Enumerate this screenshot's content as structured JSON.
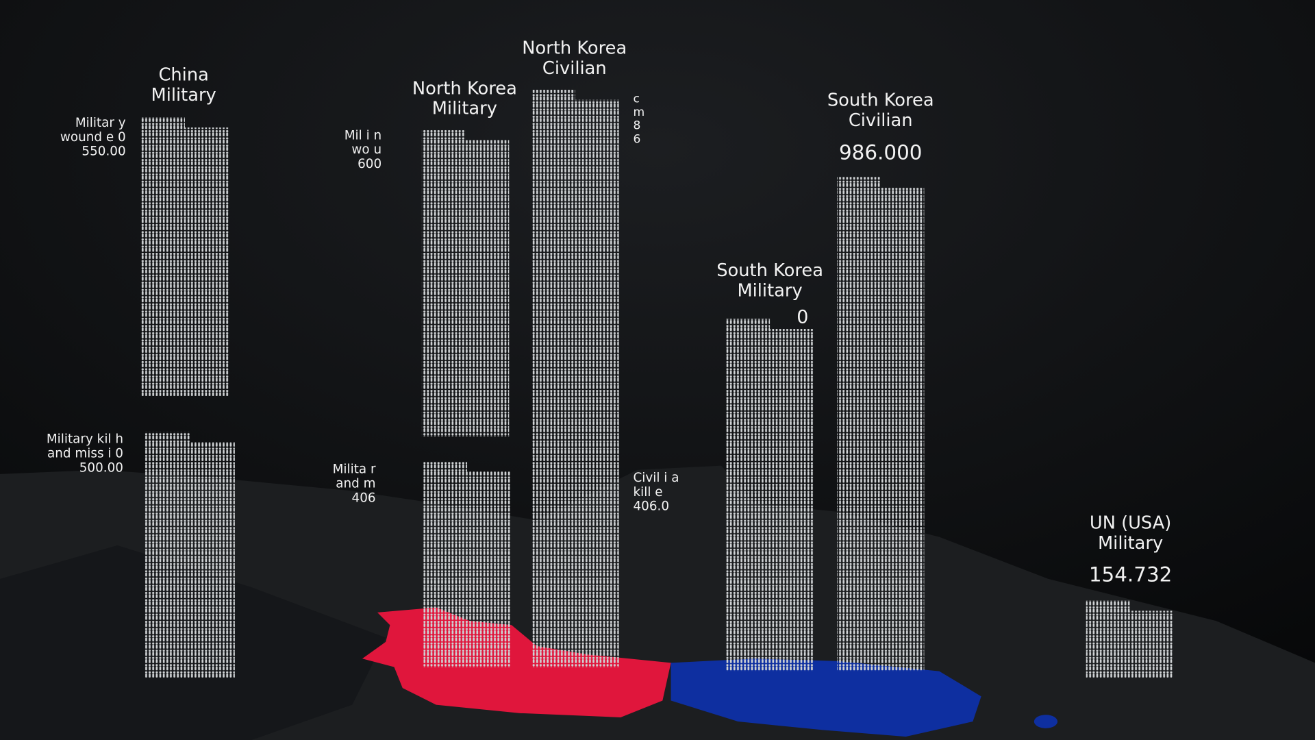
{
  "columns": [
    {
      "title": [
        "China",
        "Military"
      ],
      "labels": [
        [
          "Militar y",
          "wound e 0",
          "550.00"
        ],
        [
          "Military kil h",
          "and miss i 0",
          "500.00"
        ]
      ]
    },
    {
      "title": [
        "North Korea",
        "Military"
      ],
      "labels": [
        [
          "Mil i n",
          "wo u",
          "600"
        ],
        [
          "Milita r",
          "and m",
          "406"
        ]
      ]
    },
    {
      "title": [
        "North Korea",
        "Civilian"
      ],
      "labels": [
        [
          "c",
          "m",
          "8",
          "6"
        ],
        [
          "Civil i a",
          "kill e",
          "406.0"
        ]
      ]
    },
    {
      "title": [
        "South Korea",
        "Military"
      ],
      "labels": [
        [
          "0"
        ]
      ]
    },
    {
      "title": [
        "South Korea",
        "Civilian"
      ],
      "labels": [
        [
          "986.000"
        ]
      ]
    },
    {
      "title": [
        "UN (USA)",
        "Military"
      ],
      "labels": [
        [
          "154.732"
        ]
      ]
    }
  ]
}
